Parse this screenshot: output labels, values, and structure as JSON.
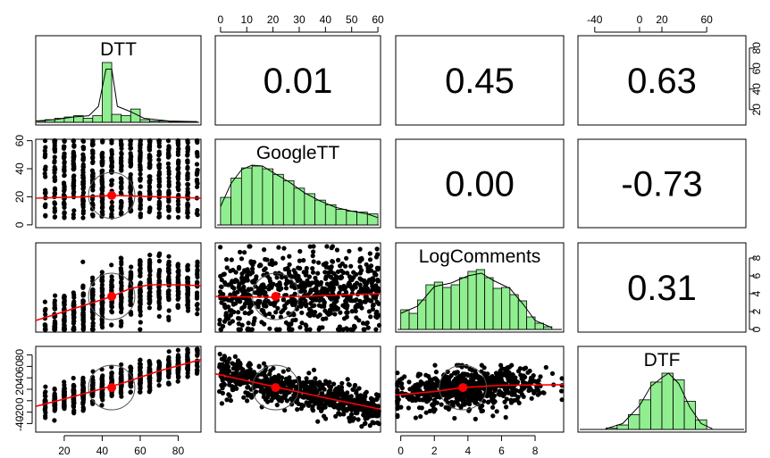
{
  "colors": {
    "hist_fill": "#90ee90",
    "fit_line": "#ff0000",
    "centroid": "#ff0000",
    "points": "#000000",
    "frame": "#000000"
  },
  "chart_data": {
    "type": "scatter",
    "variables": [
      "DTT",
      "GoogleTT",
      "LogComments",
      "DTF"
    ],
    "correlations": [
      {
        "row": 0,
        "col": 1,
        "label": "0.01",
        "value": 0.01
      },
      {
        "row": 0,
        "col": 2,
        "label": "0.45",
        "value": 0.45
      },
      {
        "row": 0,
        "col": 3,
        "label": "0.63",
        "value": 0.63
      },
      {
        "row": 1,
        "col": 2,
        "label": "0.00",
        "value": 0.0
      },
      {
        "row": 1,
        "col": 3,
        "label": "-0.73",
        "value": -0.73
      },
      {
        "row": 2,
        "col": 3,
        "label": "0.31",
        "value": 0.31
      }
    ],
    "ranges": {
      "DTT": [
        5,
        92
      ],
      "GoogleTT": [
        -2,
        61
      ],
      "LogComments": [
        -0.3,
        9.7
      ],
      "DTF": [
        -55,
        95
      ]
    },
    "top_axes": [
      {
        "col": 1,
        "ticks": [
          0,
          10,
          20,
          30,
          40,
          50,
          60
        ],
        "labels": [
          "0",
          "10",
          "20",
          "30",
          "40",
          "50",
          "60"
        ]
      },
      {
        "col": 3,
        "ticks": [
          -40,
          0,
          20,
          60
        ],
        "labels": [
          "-40",
          "0",
          "20",
          "60"
        ]
      }
    ],
    "bottom_axes": [
      {
        "col": 0,
        "ticks": [
          20,
          40,
          60,
          80
        ],
        "labels": [
          "20",
          "40",
          "60",
          "80"
        ]
      },
      {
        "col": 2,
        "ticks": [
          0,
          2,
          4,
          6,
          8
        ],
        "labels": [
          "0",
          "2",
          "4",
          "6",
          "8"
        ]
      }
    ],
    "left_axes": [
      {
        "row": 1,
        "ticks": [
          0,
          20,
          40,
          60
        ],
        "labels": [
          "0",
          "20",
          "40",
          "60"
        ]
      },
      {
        "row": 3,
        "ticks": [
          -40,
          -20,
          0,
          20,
          40,
          60,
          80
        ],
        "labels": [
          "-40",
          "-20",
          "0",
          "20",
          "40",
          "60",
          "80"
        ]
      }
    ],
    "right_axes": [
      {
        "row": 0,
        "ticks": [
          20,
          40,
          60,
          80
        ],
        "labels": [
          "20",
          "40",
          "60",
          "80"
        ]
      },
      {
        "row": 2,
        "ticks": [
          0,
          2,
          4,
          6,
          8
        ],
        "labels": [
          "0",
          "2",
          "4",
          "6",
          "8"
        ]
      }
    ],
    "histograms": {
      "DTT": {
        "bins": [
          5,
          10,
          15,
          20,
          25,
          30,
          35,
          40,
          45,
          50,
          55,
          60,
          65,
          70,
          75,
          80,
          85,
          90
        ],
        "counts": [
          1,
          2,
          3,
          4,
          5,
          3,
          5,
          45,
          6,
          5,
          10,
          2,
          1,
          1,
          0.5,
          0.5,
          0.5
        ]
      },
      "GoogleTT": {
        "bins": [
          0,
          4,
          8,
          12,
          16,
          20,
          24,
          28,
          32,
          36,
          40,
          44,
          48,
          52,
          56,
          60
        ],
        "counts": [
          30,
          51,
          62,
          64,
          61,
          55,
          48,
          40,
          34,
          27,
          22,
          17,
          15,
          14,
          12
        ]
      },
      "LogComments": {
        "bins": [
          0,
          0.5,
          1,
          1.5,
          2,
          2.5,
          3,
          3.5,
          4,
          4.5,
          5,
          5.5,
          6,
          6.5,
          7,
          7.5,
          8,
          8.5,
          9
        ],
        "counts": [
          22,
          18,
          33,
          50,
          53,
          47,
          50,
          58,
          65,
          67,
          58,
          46,
          47,
          39,
          32,
          14,
          7,
          3
        ]
      },
      "DTF": {
        "bins": [
          -30,
          -20,
          -10,
          0,
          10,
          20,
          30,
          40,
          50,
          60
        ],
        "counts": [
          2,
          6,
          20,
          40,
          64,
          76,
          67,
          38,
          13
        ]
      }
    },
    "density_curves": {
      "DTT": [
        [
          5,
          1
        ],
        [
          15,
          2
        ],
        [
          25,
          4
        ],
        [
          33,
          5
        ],
        [
          38,
          12
        ],
        [
          42,
          40
        ],
        [
          45,
          40
        ],
        [
          48,
          12
        ],
        [
          55,
          8
        ],
        [
          62,
          3
        ],
        [
          75,
          1
        ],
        [
          90,
          0.5
        ]
      ],
      "GoogleTT": [
        [
          0,
          20
        ],
        [
          4,
          45
        ],
        [
          8,
          60
        ],
        [
          12,
          65
        ],
        [
          16,
          64
        ],
        [
          20,
          57
        ],
        [
          26,
          47
        ],
        [
          32,
          35
        ],
        [
          38,
          26
        ],
        [
          44,
          19
        ],
        [
          50,
          15
        ],
        [
          56,
          12
        ],
        [
          60,
          8
        ]
      ],
      "LogComments": [
        [
          0,
          18
        ],
        [
          1,
          26
        ],
        [
          2,
          48
        ],
        [
          3,
          52
        ],
        [
          4,
          60
        ],
        [
          4.8,
          63
        ],
        [
          5.5,
          55
        ],
        [
          6.5,
          46
        ],
        [
          7.3,
          28
        ],
        [
          8,
          10
        ],
        [
          9,
          2
        ]
      ],
      "DTF": [
        [
          -30,
          1
        ],
        [
          -15,
          8
        ],
        [
          0,
          32
        ],
        [
          10,
          58
        ],
        [
          20,
          70
        ],
        [
          26,
          76
        ],
        [
          35,
          62
        ],
        [
          45,
          30
        ],
        [
          55,
          8
        ],
        [
          65,
          1
        ]
      ]
    },
    "loess": {
      "DTT|GoogleTT": [
        [
          5,
          19
        ],
        [
          30,
          20
        ],
        [
          45,
          21
        ],
        [
          70,
          20
        ],
        [
          92,
          19
        ]
      ],
      "DTT|LogComments": [
        [
          5,
          1
        ],
        [
          20,
          2
        ],
        [
          35,
          3
        ],
        [
          45,
          3.7
        ],
        [
          55,
          4.6
        ],
        [
          65,
          5
        ],
        [
          80,
          5
        ],
        [
          92,
          4.9
        ]
      ],
      "DTT|DTF": [
        [
          5,
          -10
        ],
        [
          20,
          3
        ],
        [
          40,
          21
        ],
        [
          50,
          30
        ],
        [
          70,
          52
        ],
        [
          92,
          72
        ]
      ],
      "GoogleTT|LogComments": [
        [
          -2,
          3.7
        ],
        [
          20,
          3.6
        ],
        [
          40,
          3.8
        ],
        [
          61,
          4.0
        ]
      ],
      "GoogleTT|DTF": [
        [
          -2,
          47
        ],
        [
          20,
          25
        ],
        [
          40,
          5
        ],
        [
          61,
          -15
        ]
      ],
      "LogComments|DTF": [
        [
          -0.3,
          10
        ],
        [
          2,
          16
        ],
        [
          3.7,
          23
        ],
        [
          6,
          27
        ],
        [
          9.7,
          28
        ]
      ]
    },
    "centroids": {
      "DTT|GoogleTT": [
        45,
        21
      ],
      "DTT|LogComments": [
        45,
        3.7
      ],
      "DTT|DTF": [
        45,
        23
      ],
      "GoogleTT|LogComments": [
        21,
        3.7
      ],
      "GoogleTT|DTF": [
        21,
        23
      ],
      "LogComments|DTF": [
        3.7,
        23
      ]
    }
  }
}
